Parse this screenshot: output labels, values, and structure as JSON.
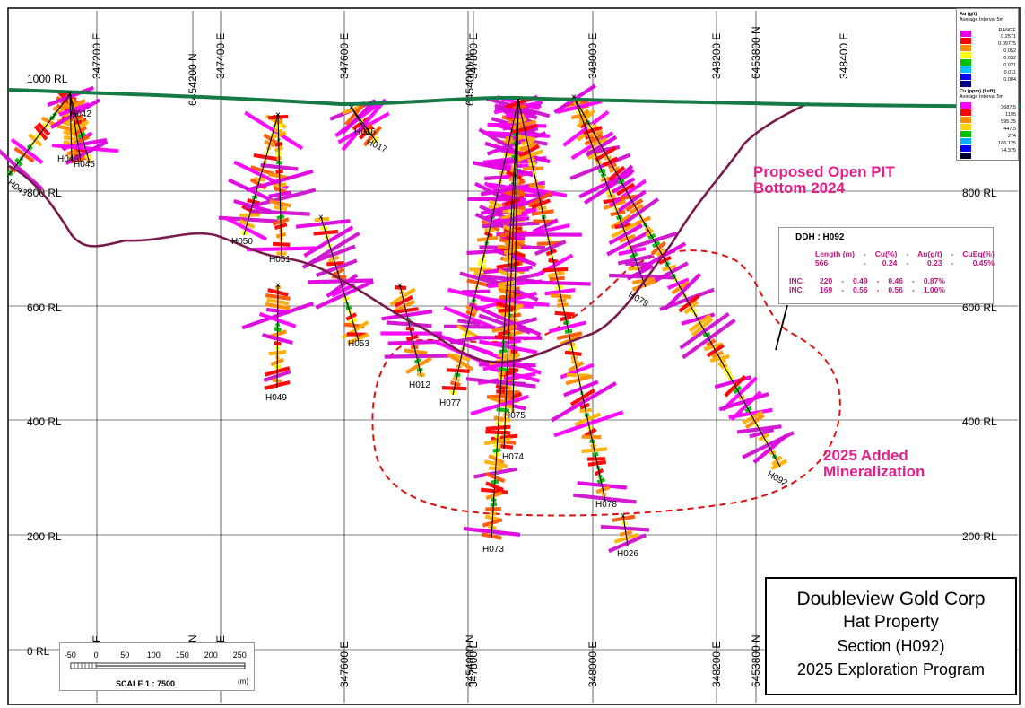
{
  "section": {
    "rl_labels_left": [
      "1000 RL",
      "800 RL",
      "600 RL",
      "400 RL",
      "200 RL",
      "0 RL"
    ],
    "rl_labels_right": [
      "800 RL",
      "600 RL",
      "400 RL",
      "200 RL"
    ],
    "top_grid_labels": [
      "347200 E",
      "6454200 N",
      "347400 E",
      "347600 E",
      "6454000 N",
      "347800 E",
      "348000 E",
      "348200 E",
      "6453800 N",
      "348400 E"
    ],
    "bottom_grid_labels": [
      "E",
      "N",
      "E",
      "347600 E",
      "6454000 N",
      "347800 E",
      "348000 E",
      "348200 E",
      "6453800 N"
    ]
  },
  "drillholes": [
    "H043",
    "H042",
    "H046",
    "H045",
    "H016",
    "H017",
    "H050",
    "H051",
    "H049",
    "H053",
    "H012",
    "H077",
    "H075",
    "H074",
    "H073",
    "H078",
    "H026",
    "H079",
    "H092"
  ],
  "annotations": {
    "pit_label": [
      "Proposed Open PIT",
      "Bottom 2024"
    ],
    "mineralization_label": [
      "2025 Added",
      "Mineralization"
    ]
  },
  "ddh_table": {
    "title": "DDH : H092",
    "header": [
      "Length (m)",
      "-",
      "Cu(%)",
      "-",
      "Au(g/t)",
      "-",
      "CuEq(%)"
    ],
    "rows": [
      [
        "566",
        "-",
        "0.24",
        "-",
        "0.23",
        "-",
        "0.45%"
      ],
      [
        "INC.",
        "220",
        "-",
        "0.49",
        "-",
        "0.46",
        "-",
        "0.87%"
      ],
      [
        "INC.",
        "169",
        "-",
        "0.56",
        "-",
        "0.56",
        "-",
        "1.00%"
      ]
    ]
  },
  "legend": {
    "au_title": "Au (g/t)",
    "au_subtitle": "Average Interval 5m",
    "au_range_label": "RANGE",
    "au_values": [
      "0.2571",
      "0.09775",
      "0.052",
      "0.032",
      "0.021",
      "0.011",
      "0.004"
    ],
    "au_colors": [
      "#e000e0",
      "#ff0000",
      "#ff8c00",
      "#ffff00",
      "#00c000",
      "#00c0ff",
      "#0000ff",
      "#000080"
    ],
    "cu_title": "Cu (ppm) (Left)",
    "cu_subtitle": "Average Interval 5m",
    "cu_values": [
      "2687.5",
      "1195",
      "595.25",
      "447.5",
      "274",
      "166.125",
      "74.375"
    ],
    "cu_colors": [
      "#ff00ff",
      "#ff0000",
      "#ff8c00",
      "#ffd700",
      "#00c000",
      "#00b0ff",
      "#0000ff",
      "#000030"
    ]
  },
  "scale": {
    "ticks": [
      "-50",
      "0",
      "50",
      "100",
      "150",
      "200",
      "250"
    ],
    "unit": "(m)",
    "label": "SCALE  1 : 7500"
  },
  "title_block": {
    "line1": "Doubleview Gold Corp",
    "line2": "Hat Property",
    "line3": "Section (H092)",
    "line4": "2025 Exploration Program"
  },
  "colors": {
    "topography": "#157a45",
    "pit_outline": "#7a1a4f",
    "mineralization_outline": "#e01010",
    "annotation": "#e0208a"
  }
}
